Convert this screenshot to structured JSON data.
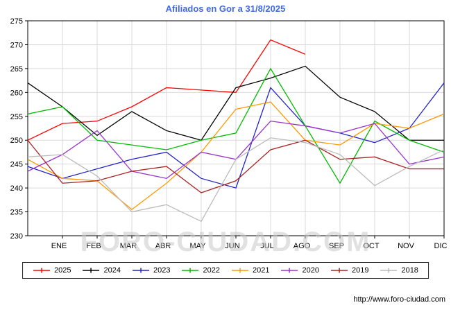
{
  "page": {
    "watermark": "FORO-CIUDAD.COM",
    "footer_url": "http://www.foro-ciudad.com"
  },
  "chart_data": {
    "type": "line",
    "title": "Afiliados en Gor a 31/8/2025",
    "categories": [
      "ENE",
      "FEB",
      "MAR",
      "ABR",
      "MAY",
      "JUN",
      "JUL",
      "AGO",
      "SEP",
      "OCT",
      "NOV",
      "DIC"
    ],
    "ylabel": "",
    "xlabel": "",
    "ylim": [
      230,
      275
    ],
    "ytick_step": 5,
    "grid": true,
    "legend_position": "bottom",
    "note": "Each series starts at the left plot edge with the previous December value (start), then 12 monthly points. 2025 data ends in August.",
    "series": [
      {
        "name": "2025",
        "color": "#ff0000",
        "start": 250,
        "values": [
          253.5,
          254,
          257,
          261,
          260.5,
          260,
          271,
          268
        ]
      },
      {
        "name": "2024",
        "color": "#000000",
        "start": 262,
        "values": [
          257,
          251,
          256,
          252,
          250,
          261,
          263,
          265.5,
          259,
          256,
          250,
          250
        ]
      },
      {
        "name": "2023",
        "color": "#2222cc",
        "start": 244.5,
        "values": [
          242,
          244,
          246,
          247.5,
          242,
          240,
          261,
          253,
          251.5,
          249.5,
          252.5,
          262
        ]
      },
      {
        "name": "2022",
        "color": "#00bb00",
        "start": 255.5,
        "values": [
          257,
          250,
          249,
          248,
          250,
          251.5,
          265,
          253,
          241,
          254,
          250,
          247.5
        ]
      },
      {
        "name": "2021",
        "color": "#ff9900",
        "start": 246,
        "values": [
          242,
          241.5,
          235.5,
          241,
          247.5,
          256.5,
          258,
          250,
          249,
          253.5,
          252.5,
          255.5
        ]
      },
      {
        "name": "2020",
        "color": "#9933cc",
        "start": 243.5,
        "values": [
          247,
          252,
          243.5,
          242,
          247.5,
          246,
          254,
          253,
          251.5,
          253.5,
          245,
          246.5
        ]
      },
      {
        "name": "2019",
        "color": "#aa2222",
        "start": 250,
        "values": [
          241,
          241.5,
          243.5,
          244.5,
          239,
          241.5,
          248,
          250,
          246,
          246.5,
          244,
          244
        ]
      },
      {
        "name": "2018",
        "color": "#bbbbbb",
        "start": 246.5,
        "values": [
          247,
          242.5,
          235,
          236.5,
          233,
          246,
          250.5,
          249.5,
          247,
          240.5,
          244.5,
          248
        ]
      }
    ]
  }
}
